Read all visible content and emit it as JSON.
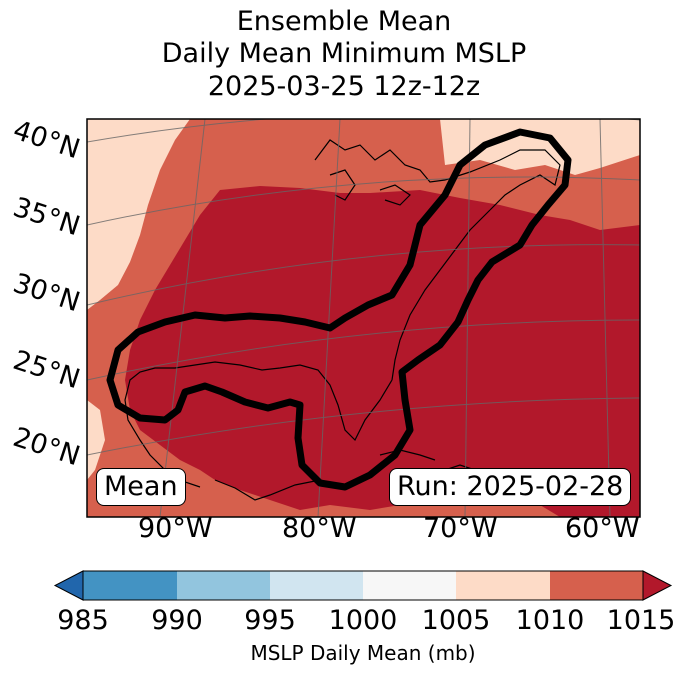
{
  "title": {
    "line1": "Ensemble Mean",
    "line2": "Daily Mean Minimum MSLP",
    "line3": "2025-03-25 12z-12z"
  },
  "map": {
    "lat_labels": [
      "40°N",
      "35°N",
      "30°N",
      "25°N",
      "20°N"
    ],
    "lon_labels": [
      "90°W",
      "80°W",
      "70°W",
      "60°W"
    ],
    "left_box": "Mean",
    "right_box": "Run: 2025-02-28",
    "contour_color": "#000000"
  },
  "colorbar": {
    "label": "MSLP Daily Mean (mb)",
    "ticks": [
      "985",
      "990",
      "995",
      "1000",
      "1005",
      "1010",
      "1015"
    ],
    "colors": [
      "#2166ac",
      "#4393c3",
      "#92c5de",
      "#d1e5f0",
      "#f7f7f7",
      "#fddbc7",
      "#d6604d",
      "#b2182b"
    ]
  }
}
